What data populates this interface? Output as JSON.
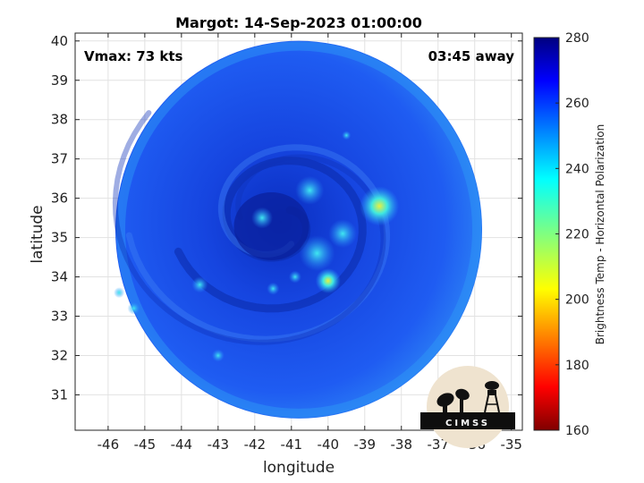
{
  "chart_data": {
    "type": "heatmap",
    "title": "Margot: 14-Sep-2023 01:00:00",
    "xlabel": "longitude",
    "ylabel": "latitude",
    "xlim": [
      -46.9,
      -34.7
    ],
    "ylim": [
      30.1,
      40.2
    ],
    "xticks": [
      -46,
      -45,
      -44,
      -43,
      -42,
      -41,
      -40,
      -39,
      -38,
      -37,
      -36,
      -35
    ],
    "yticks": [
      31,
      32,
      33,
      34,
      35,
      36,
      37,
      38,
      39,
      40
    ],
    "grid": true,
    "annotations": {
      "vmax": "Vmax: 73 kts",
      "time_away": "03:45 away"
    },
    "colorbar": {
      "label": "Brightness Temp - Horizontal Polarization",
      "min": 160,
      "max": 280,
      "ticks": [
        160,
        180,
        200,
        220,
        240,
        260,
        280
      ],
      "colormap": "jet"
    },
    "storm_center": {
      "lon": -41.3,
      "lat": 35.4
    },
    "swath_center": {
      "lon": -40.8,
      "lat": 35.2
    },
    "swath_radius_deg": 5.75
  },
  "logo": {
    "text": "CIMSS"
  }
}
